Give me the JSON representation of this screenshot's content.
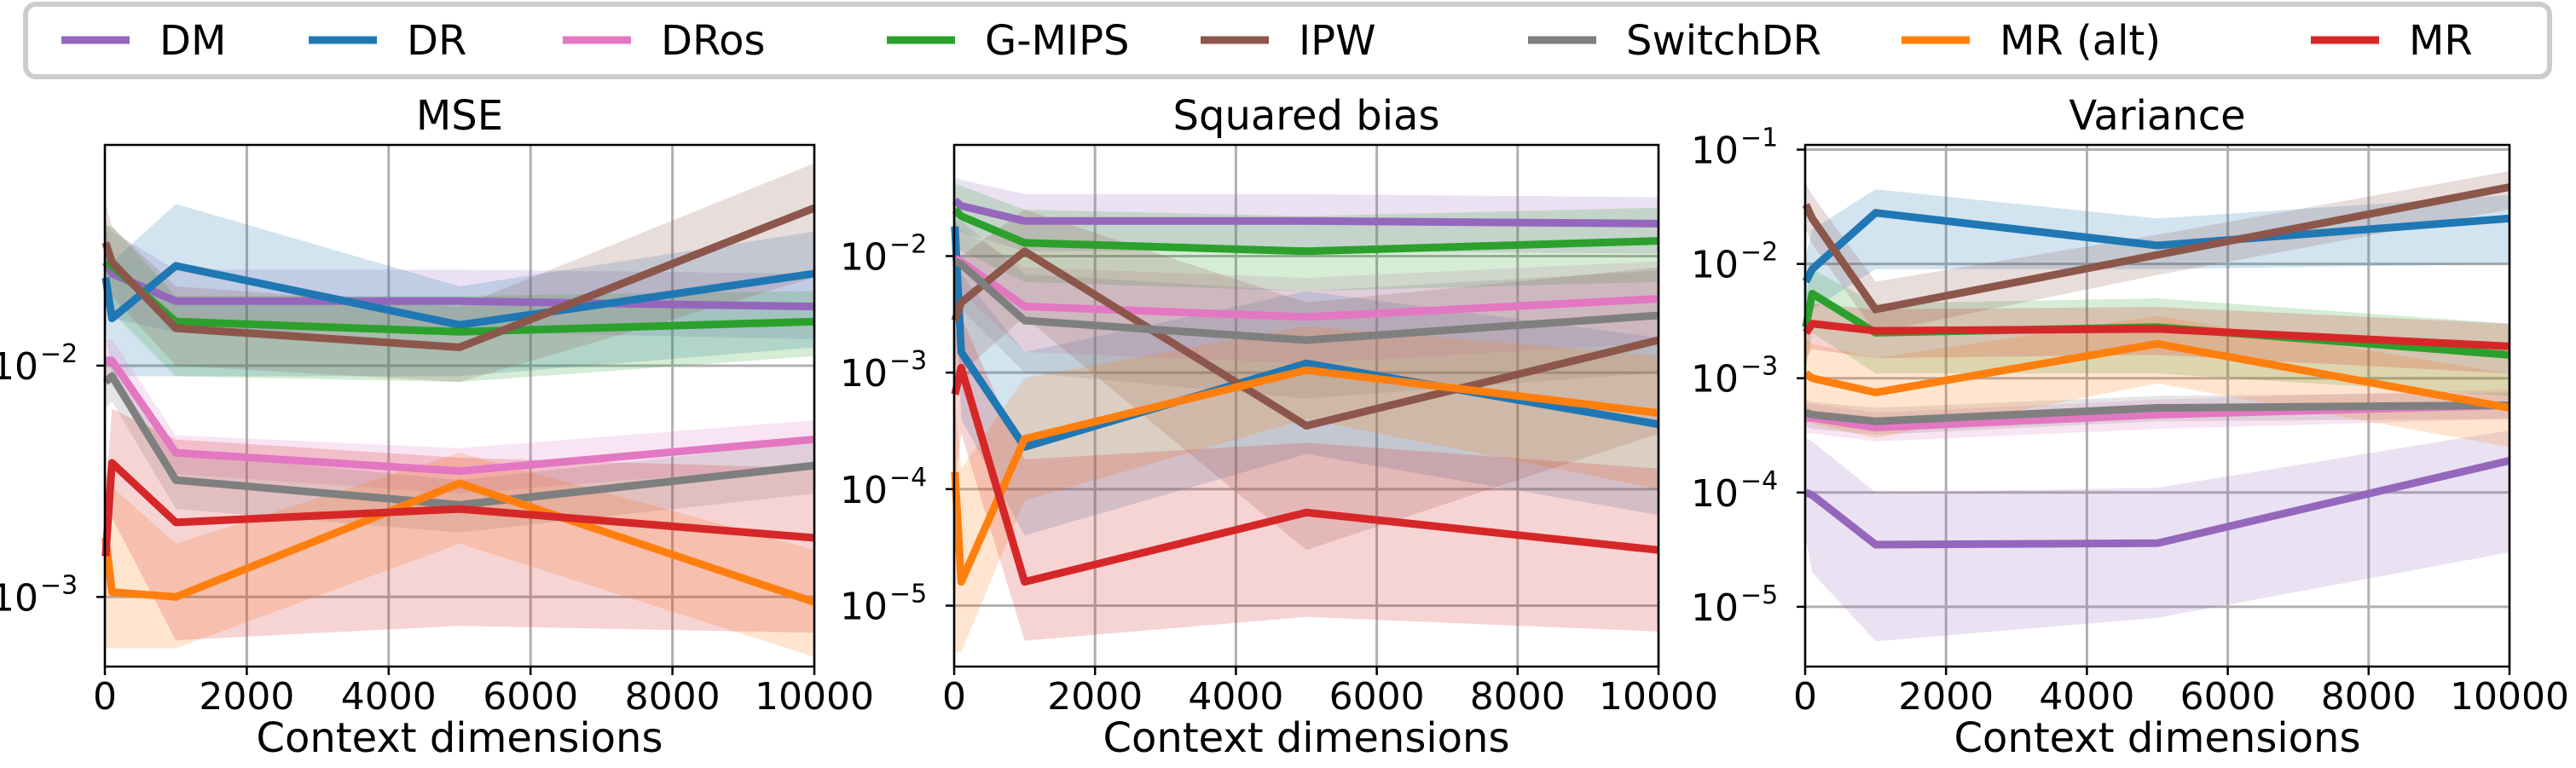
{
  "colors": {
    "DM": "#9467bd",
    "DR": "#1f77b4",
    "DRos": "#e377c2",
    "G-MIPS": "#2ca02c",
    "IPW": "#8c564b",
    "SwitchDR": "#7f7f7f",
    "MR (alt)": "#ff7f0e",
    "MR": "#d62728"
  },
  "legend": [
    "DM",
    "DR",
    "DRos",
    "G-MIPS",
    "IPW",
    "SwitchDR",
    "MR (alt)",
    "MR"
  ],
  "chart_data": [
    {
      "type": "line",
      "title": "MSE",
      "xlabel": "Context dimensions",
      "ylabel": "",
      "yscale": "log",
      "xlim": [
        0,
        10000
      ],
      "ylim": [
        0.0005,
        0.09
      ],
      "grid": true,
      "xticks": [
        0,
        2000,
        4000,
        6000,
        8000,
        10000
      ],
      "xtick_labels": [
        "0",
        "2000",
        "4000",
        "6000",
        "8000",
        "10000"
      ],
      "yticks": [
        {
          "value": 0.01,
          "base": "10",
          "exp": "−2"
        },
        {
          "value": 0.001,
          "base": "10",
          "exp": "−3"
        }
      ],
      "x": [
        10,
        100,
        1000,
        5000,
        10000
      ],
      "series": [
        {
          "name": "DM",
          "values": [
            0.028,
            0.025,
            0.019,
            0.019,
            0.018
          ],
          "lower": [
            0.018,
            0.016,
            0.014,
            0.014,
            0.013
          ],
          "upper": [
            0.042,
            0.038,
            0.026,
            0.026,
            0.025
          ]
        },
        {
          "name": "DR",
          "values": [
            0.024,
            0.016,
            0.027,
            0.015,
            0.025
          ],
          "lower": [
            0.014,
            0.009,
            0.009,
            0.009,
            0.012
          ],
          "upper": [
            0.04,
            0.028,
            0.05,
            0.022,
            0.038
          ]
        },
        {
          "name": "DRos",
          "values": [
            0.0105,
            0.0105,
            0.0042,
            0.0035,
            0.0048
          ],
          "lower": [
            0.0085,
            0.0085,
            0.0034,
            0.0028,
            0.0037
          ],
          "upper": [
            0.013,
            0.013,
            0.005,
            0.0044,
            0.0058
          ]
        },
        {
          "name": "G-MIPS",
          "values": [
            0.028,
            0.027,
            0.0155,
            0.014,
            0.0155
          ],
          "lower": [
            0.019,
            0.017,
            0.009,
            0.0085,
            0.011
          ],
          "upper": [
            0.04,
            0.04,
            0.02,
            0.02,
            0.021
          ]
        },
        {
          "name": "IPW",
          "values": [
            0.034,
            0.028,
            0.0145,
            0.012,
            0.048
          ],
          "lower": [
            0.024,
            0.02,
            0.01,
            0.0085,
            0.024
          ],
          "upper": [
            0.05,
            0.04,
            0.022,
            0.018,
            0.075
          ]
        },
        {
          "name": "SwitchDR",
          "values": [
            0.0085,
            0.009,
            0.0032,
            0.0025,
            0.0037
          ],
          "lower": [
            0.0065,
            0.007,
            0.0024,
            0.0019,
            0.0028
          ],
          "upper": [
            0.011,
            0.011,
            0.0042,
            0.0032,
            0.0047
          ]
        },
        {
          "name": "MR (alt)",
          "values": [
            0.0018,
            0.00105,
            0.001,
            0.0031,
            0.00095
          ],
          "lower": [
            0.0006,
            0.0006,
            0.0006,
            0.0017,
            0.00055
          ],
          "upper": [
            0.0035,
            0.003,
            0.0017,
            0.0042,
            0.0016
          ]
        },
        {
          "name": "MR",
          "values": [
            0.0015,
            0.0038,
            0.0021,
            0.0024,
            0.0018
          ],
          "lower": [
            0.0009,
            0.0022,
            0.00065,
            0.00075,
            0.0007
          ],
          "upper": [
            0.0028,
            0.0065,
            0.0048,
            0.004,
            0.0036
          ]
        }
      ]
    },
    {
      "type": "line",
      "title": "Squared bias",
      "xlabel": "Context dimensions",
      "ylabel": "",
      "yscale": "log",
      "xlim": [
        0,
        10000
      ],
      "ylim": [
        3e-06,
        0.09
      ],
      "grid": true,
      "xticks": [
        0,
        2000,
        4000,
        6000,
        8000,
        10000
      ],
      "xtick_labels": [
        "0",
        "2000",
        "4000",
        "6000",
        "8000",
        "10000"
      ],
      "yticks": [
        {
          "value": 0.01,
          "base": "10",
          "exp": "−2"
        },
        {
          "value": 0.001,
          "base": "10",
          "exp": "−3"
        },
        {
          "value": 0.0001,
          "base": "10",
          "exp": "−4"
        },
        {
          "value": 1e-05,
          "base": "10",
          "exp": "−5"
        }
      ],
      "x": [
        10,
        100,
        1000,
        5000,
        10000
      ],
      "series": [
        {
          "name": "DM",
          "values": [
            0.03,
            0.027,
            0.02,
            0.02,
            0.019
          ],
          "lower": [
            0.017,
            0.016,
            0.011,
            0.011,
            0.0105
          ],
          "upper": [
            0.048,
            0.045,
            0.034,
            0.034,
            0.032
          ]
        },
        {
          "name": "DR",
          "values": [
            0.018,
            0.0015,
            0.00023,
            0.0012,
            0.00036
          ],
          "lower": [
            0.009,
            0.0004,
            4e-05,
            0.0002,
            6e-05
          ],
          "upper": [
            0.03,
            0.007,
            0.0015,
            0.005,
            0.002
          ]
        },
        {
          "name": "DRos",
          "values": [
            0.0095,
            0.009,
            0.0037,
            0.003,
            0.0043
          ],
          "lower": [
            0.005,
            0.005,
            0.0015,
            0.0012,
            0.0018
          ],
          "upper": [
            0.017,
            0.017,
            0.008,
            0.0065,
            0.009
          ]
        },
        {
          "name": "G-MIPS",
          "values": [
            0.025,
            0.022,
            0.013,
            0.011,
            0.0135
          ],
          "lower": [
            0.013,
            0.011,
            0.006,
            0.005,
            0.006
          ],
          "upper": [
            0.042,
            0.04,
            0.025,
            0.022,
            0.026
          ]
        },
        {
          "name": "IPW",
          "values": [
            0.0028,
            0.004,
            0.011,
            0.00035,
            0.0019
          ],
          "lower": [
            0.0008,
            0.001,
            0.003,
            3e-05,
            0.0003
          ],
          "upper": [
            0.008,
            0.01,
            0.025,
            0.004,
            0.008
          ]
        },
        {
          "name": "SwitchDR",
          "values": [
            0.009,
            0.0085,
            0.0028,
            0.0019,
            0.0031
          ],
          "lower": [
            0.0035,
            0.0035,
            0.001,
            0.0006,
            0.001
          ],
          "upper": [
            0.02,
            0.02,
            0.007,
            0.005,
            0.0075
          ]
        },
        {
          "name": "MR (alt)",
          "values": [
            0.00014,
            1.6e-05,
            0.00027,
            0.00105,
            0.00045
          ],
          "lower": [
            4e-06,
            4e-06,
            8e-05,
            0.0004,
            0.0001
          ],
          "upper": [
            0.0006,
            0.00015,
            0.0009,
            0.0025,
            0.0014
          ]
        },
        {
          "name": "MR",
          "values": [
            0.00065,
            0.0011,
            1.6e-05,
            6.3e-05,
            3e-05
          ],
          "lower": [
            0.0001,
            0.0003,
            5e-06,
            8e-06,
            6e-06
          ],
          "upper": [
            0.002,
            0.003,
            0.00018,
            0.00025,
            0.00015
          ]
        }
      ]
    },
    {
      "type": "line",
      "title": "Variance",
      "xlabel": "Context dimensions",
      "ylabel": "",
      "yscale": "log",
      "xlim": [
        0,
        10000
      ],
      "ylim": [
        3e-06,
        0.11
      ],
      "grid": true,
      "xticks": [
        0,
        2000,
        4000,
        6000,
        8000,
        10000
      ],
      "xtick_labels": [
        "0",
        "2000",
        "4000",
        "6000",
        "8000",
        "10000"
      ],
      "yticks": [
        {
          "value": 0.1,
          "base": "10",
          "exp": "−1"
        },
        {
          "value": 0.01,
          "base": "10",
          "exp": "−2"
        },
        {
          "value": 0.001,
          "base": "10",
          "exp": "−3"
        },
        {
          "value": 0.0001,
          "base": "10",
          "exp": "−4"
        },
        {
          "value": 1e-05,
          "base": "10",
          "exp": "−5"
        }
      ],
      "x": [
        10,
        100,
        1000,
        5000,
        10000
      ],
      "series": [
        {
          "name": "DM",
          "values": [
            0.0001,
            9.5e-05,
            3.5e-05,
            3.6e-05,
            0.00019
          ],
          "lower": [
            4e-05,
            2e-05,
            5e-06,
            8e-06,
            3e-05
          ],
          "upper": [
            0.0003,
            0.00028,
            0.0001,
            0.00011,
            0.00035
          ]
        },
        {
          "name": "DR",
          "values": [
            0.007,
            0.009,
            0.028,
            0.0145,
            0.025
          ],
          "lower": [
            0.004,
            0.004,
            0.009,
            0.009,
            0.01
          ],
          "upper": [
            0.012,
            0.02,
            0.045,
            0.025,
            0.04
          ]
        },
        {
          "name": "DRos",
          "values": [
            0.00045,
            0.00045,
            0.00037,
            0.00048,
            0.00058
          ],
          "lower": [
            0.00033,
            0.00033,
            0.00028,
            0.00036,
            0.00044
          ],
          "upper": [
            0.0006,
            0.0006,
            0.0005,
            0.00065,
            0.0008
          ]
        },
        {
          "name": "G-MIPS",
          "values": [
            0.0028,
            0.0055,
            0.0025,
            0.0028,
            0.0016
          ],
          "lower": [
            0.0012,
            0.0025,
            0.0011,
            0.0011,
            0.0007
          ],
          "upper": [
            0.0055,
            0.009,
            0.0045,
            0.005,
            0.003
          ]
        },
        {
          "name": "IPW",
          "values": [
            0.033,
            0.025,
            0.004,
            0.012,
            0.047
          ],
          "lower": [
            0.02,
            0.015,
            0.0025,
            0.008,
            0.03
          ],
          "upper": [
            0.05,
            0.04,
            0.007,
            0.018,
            0.065
          ]
        },
        {
          "name": "SwitchDR",
          "values": [
            0.0005,
            0.00048,
            0.00042,
            0.00055,
            0.00058
          ],
          "lower": [
            0.00038,
            0.00036,
            0.00032,
            0.00042,
            0.00044
          ],
          "upper": [
            0.00065,
            0.00062,
            0.00055,
            0.0007,
            0.00075
          ]
        },
        {
          "name": "MR (alt)",
          "values": [
            0.0011,
            0.001,
            0.00075,
            0.002,
            0.00055
          ],
          "lower": [
            0.0005,
            0.0004,
            0.0003,
            0.0009,
            0.00025
          ],
          "upper": [
            0.0022,
            0.002,
            0.0015,
            0.0035,
            0.0011
          ]
        },
        {
          "name": "MR",
          "values": [
            0.0025,
            0.003,
            0.0026,
            0.0027,
            0.0019
          ],
          "lower": [
            0.0015,
            0.0018,
            0.0015,
            0.0016,
            0.0011
          ],
          "upper": [
            0.004,
            0.0045,
            0.004,
            0.0042,
            0.003
          ]
        }
      ]
    }
  ]
}
